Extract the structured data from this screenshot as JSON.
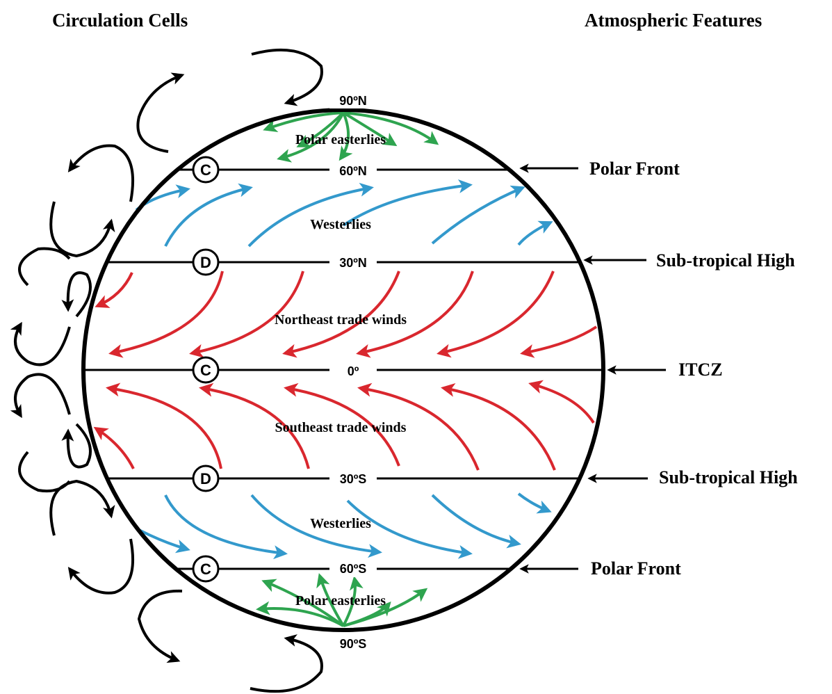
{
  "headings": {
    "left": "Circulation Cells",
    "right": "Atmospheric Features"
  },
  "latitudes": {
    "n90": "90ºN",
    "n60": "60ºN",
    "n30": "30ºN",
    "eq": "0º",
    "s30": "30ºS",
    "s60": "60ºS",
    "s90": "90ºS"
  },
  "cells": {
    "n60": "C",
    "n30": "D",
    "eq": "C",
    "s30": "D",
    "s60": "C"
  },
  "features": {
    "n60": "Polar Front",
    "n30": "Sub-tropical High",
    "eq": "ITCZ",
    "s30": "Sub-tropical High",
    "s60": "Polar Front"
  },
  "winds": {
    "north_polar": "Polar easterlies",
    "north_westerlies": "Westerlies",
    "ne_trades": "Northeast trade winds",
    "se_trades": "Southeast trade winds",
    "south_westerlies": "Westerlies",
    "south_polar": "Polar easterlies"
  },
  "colors": {
    "polar_easterlies": "#2ea44f",
    "westerlies": "#3399cc",
    "trade_winds": "#d9272e",
    "circulation": "#000000"
  }
}
